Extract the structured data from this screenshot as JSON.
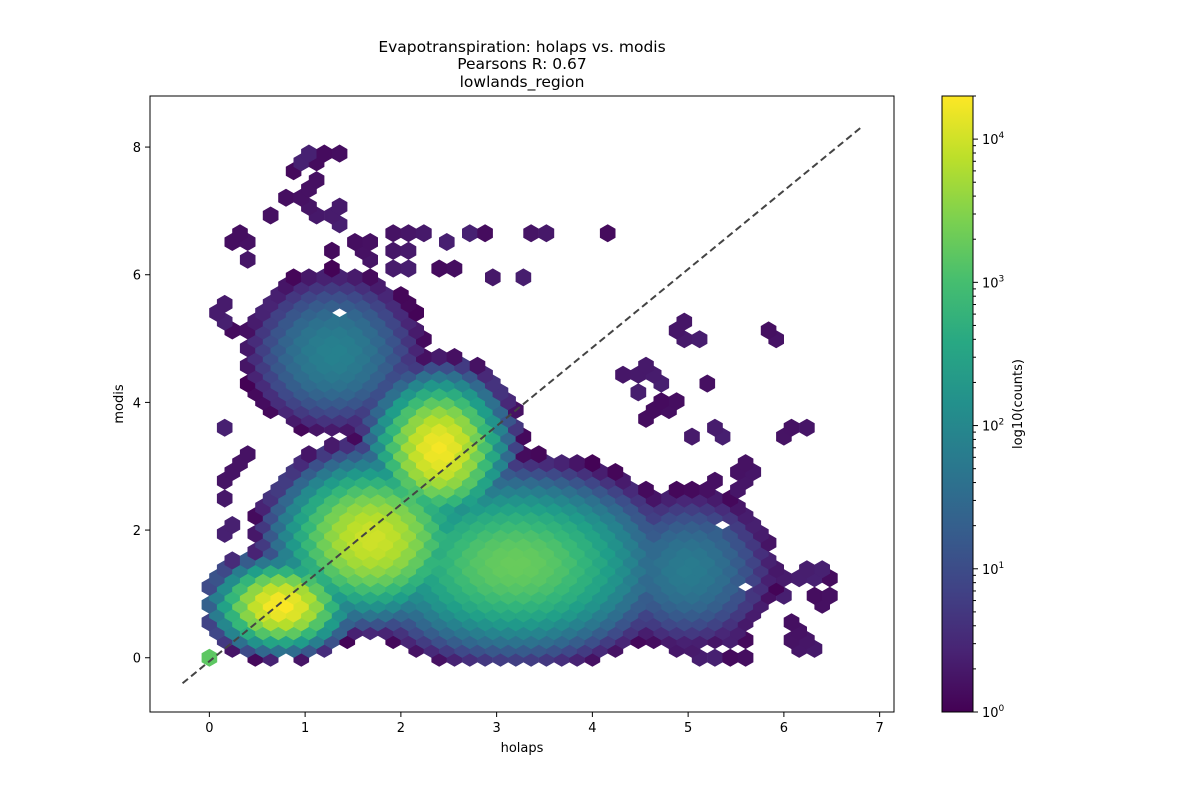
{
  "chart_data": {
    "type": "hexbin",
    "title": [
      "Evapotranspiration: holaps vs. modis",
      "Pearsons R: 0.67",
      "lowlands_region"
    ],
    "xlabel": "holaps",
    "ylabel": "modis",
    "xlim": [
      -0.62,
      7.15
    ],
    "ylim": [
      -0.85,
      8.8
    ],
    "xticks": [
      0,
      1,
      2,
      3,
      4,
      5,
      6,
      7
    ],
    "yticks": [
      0,
      2,
      4,
      6,
      8
    ],
    "grid": false,
    "colormap": "viridis",
    "color_scale": "log",
    "colorbar": {
      "label": "log10(counts)",
      "range": [
        1,
        20000
      ],
      "ticks": [
        {
          "base": "10",
          "exp": "0",
          "value": 1
        },
        {
          "base": "10",
          "exp": "1",
          "value": 10
        },
        {
          "base": "10",
          "exp": "2",
          "value": 100
        },
        {
          "base": "10",
          "exp": "3",
          "value": 1000
        },
        {
          "base": "10",
          "exp": "4",
          "value": 10000
        }
      ]
    },
    "reference_line": {
      "style": "dashed",
      "color": "#444444",
      "from": [
        -0.28,
        -0.4
      ],
      "to": [
        6.8,
        8.3
      ]
    },
    "density_model": {
      "support": {
        "x": [
          0.0,
          6.5
        ],
        "y": [
          0.0,
          8.0
        ]
      },
      "peak_count": 20000,
      "components": [
        {
          "x": 0.75,
          "y": 0.85,
          "sx": 0.55,
          "sy": 0.55,
          "log10_peak": 4.3
        },
        {
          "x": 2.4,
          "y": 3.3,
          "sx": 0.55,
          "sy": 0.9,
          "log10_peak": 4.25
        },
        {
          "x": 1.7,
          "y": 1.9,
          "sx": 0.8,
          "sy": 1.0,
          "log10_peak": 4.0
        },
        {
          "x": 3.2,
          "y": 1.5,
          "sx": 1.3,
          "sy": 1.2,
          "log10_peak": 3.3
        },
        {
          "x": 1.3,
          "y": 4.8,
          "sx": 0.9,
          "sy": 1.2,
          "log10_peak": 1.9
        },
        {
          "x": 5.0,
          "y": 1.4,
          "sx": 0.9,
          "sy": 1.2,
          "log10_peak": 1.8
        }
      ],
      "sparse_cells": [
        [
          1.0,
          7.9
        ],
        [
          1.2,
          7.9
        ],
        [
          1.3,
          7.9
        ],
        [
          0.95,
          7.7
        ],
        [
          1.05,
          7.75
        ],
        [
          1.1,
          7.4
        ],
        [
          1.0,
          7.15
        ],
        [
          0.8,
          7.2
        ],
        [
          0.9,
          7.2
        ],
        [
          1.3,
          7.05
        ],
        [
          0.6,
          6.9
        ],
        [
          0.75,
          6.95
        ],
        [
          1.2,
          6.95
        ],
        [
          1.35,
          6.85
        ],
        [
          0.2,
          6.55
        ],
        [
          0.35,
          6.6
        ],
        [
          1.9,
          6.7
        ],
        [
          2.05,
          6.7
        ],
        [
          2.2,
          6.7
        ],
        [
          2.8,
          6.7
        ],
        [
          2.95,
          6.7
        ],
        [
          3.3,
          6.7
        ],
        [
          3.5,
          6.7
        ],
        [
          4.1,
          6.7
        ],
        [
          2.5,
          6.55
        ],
        [
          1.6,
          6.45
        ],
        [
          1.9,
          6.4
        ],
        [
          2.05,
          6.4
        ],
        [
          0.35,
          6.2
        ],
        [
          1.25,
          6.4
        ],
        [
          1.75,
          6.2
        ],
        [
          2.0,
          6.1
        ],
        [
          2.4,
          6.05
        ],
        [
          2.55,
          6.05
        ],
        [
          2.9,
          6.0
        ],
        [
          3.25,
          5.95
        ],
        [
          0.1,
          5.35
        ],
        [
          0.2,
          5.5
        ],
        [
          0.2,
          5.15
        ],
        [
          5.85,
          5.05
        ],
        [
          5.0,
          5.0
        ],
        [
          5.15,
          5.0
        ],
        [
          4.9,
          5.2
        ],
        [
          4.4,
          4.4
        ],
        [
          4.6,
          4.5
        ],
        [
          4.7,
          4.3
        ],
        [
          5.25,
          4.3
        ],
        [
          4.5,
          4.15
        ],
        [
          4.8,
          3.95
        ],
        [
          4.6,
          3.8
        ],
        [
          0.1,
          3.6
        ],
        [
          6.05,
          3.6
        ],
        [
          6.2,
          3.6
        ],
        [
          5.95,
          3.45
        ],
        [
          5.3,
          3.55
        ],
        [
          5.1,
          3.45
        ],
        [
          0.25,
          3.0
        ],
        [
          0.35,
          3.1
        ],
        [
          0.2,
          2.8
        ],
        [
          0.3,
          2.9
        ],
        [
          5.55,
          3.0
        ],
        [
          5.7,
          2.9
        ],
        [
          5.6,
          2.85
        ],
        [
          4.7,
          2.4
        ],
        [
          0.2,
          2.45
        ],
        [
          5.2,
          2.6
        ],
        [
          5.5,
          2.6
        ],
        [
          5.4,
          2.4
        ],
        [
          5.15,
          2.3
        ],
        [
          5.3,
          2.8
        ],
        [
          0.2,
          2.0
        ],
        [
          5.3,
          2.0
        ],
        [
          5.2,
          1.5
        ],
        [
          5.75,
          1.35
        ],
        [
          5.95,
          1.3
        ],
        [
          6.2,
          1.2
        ],
        [
          6.35,
          1.2
        ],
        [
          6.3,
          1.35
        ],
        [
          6.4,
          1.2
        ],
        [
          6.45,
          1.35
        ],
        [
          6.05,
          1.0
        ],
        [
          6.4,
          0.9
        ],
        [
          5.8,
          0.8
        ],
        [
          5.5,
          0.7
        ],
        [
          5.4,
          0.5
        ],
        [
          6.1,
          0.5
        ],
        [
          5.4,
          0.35
        ],
        [
          5.55,
          0.35
        ],
        [
          5.2,
          0.0
        ],
        [
          5.4,
          0.0
        ],
        [
          5.55,
          0.0
        ],
        [
          5.65,
          0.0
        ],
        [
          6.1,
          0.2
        ],
        [
          6.25,
          0.2
        ],
        [
          4.85,
          0.2
        ],
        [
          5.1,
          0.2
        ]
      ],
      "holes": [
        [
          0.85,
          6.9
        ],
        [
          0.6,
          5.75
        ],
        [
          1.4,
          5.35
        ],
        [
          2.0,
          5.85
        ],
        [
          0.8,
          0.0
        ],
        [
          5.35,
          2.05
        ],
        [
          5.55,
          1.1
        ],
        [
          4.45,
          5.55
        ],
        [
          4.55,
          5.45
        ],
        [
          4.75,
          5.3
        ],
        [
          5.65,
          2.5
        ]
      ]
    }
  }
}
